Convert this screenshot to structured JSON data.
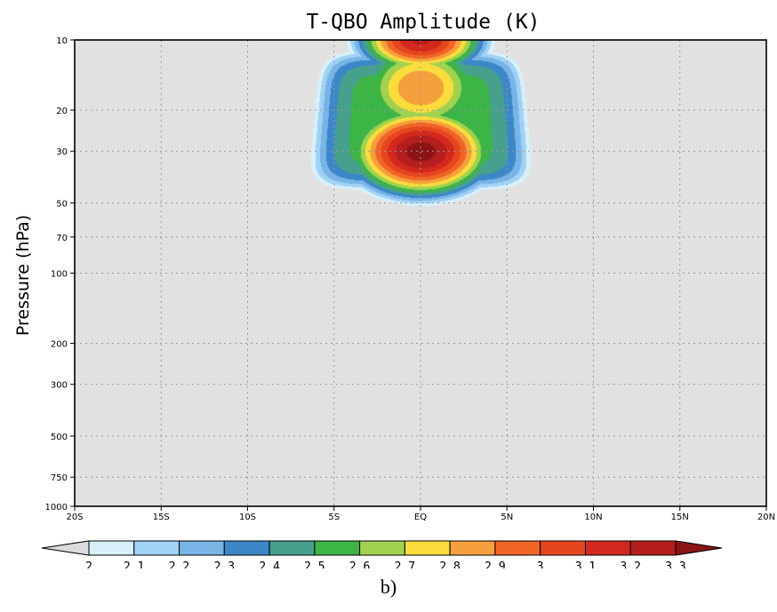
{
  "chart_data": {
    "type": "heatmap",
    "title": "T-QBO Amplitude (K)",
    "xlabel": "",
    "ylabel": "Pressure (hPa)",
    "x_ticks": [
      "20S",
      "15S",
      "10S",
      "5S",
      "EQ",
      "5N",
      "10N",
      "15N",
      "20N"
    ],
    "x_values": [
      -20,
      -15,
      -10,
      -5,
      0,
      5,
      10,
      15,
      20
    ],
    "xlim": [
      -20,
      20
    ],
    "y_ticks": [
      "10",
      "20",
      "30",
      "50",
      "70",
      "100",
      "200",
      "300",
      "500",
      "750",
      "1000"
    ],
    "y_values": [
      10,
      20,
      30,
      50,
      70,
      100,
      200,
      300,
      500,
      750,
      1000
    ],
    "ylim": [
      1000,
      10
    ],
    "y_scale": "log",
    "grid": true,
    "background_color": "#e1e1e1",
    "contour_levels": [
      2,
      2.1,
      2.2,
      2.3,
      2.4,
      2.5,
      2.6,
      2.7,
      2.8,
      2.9,
      3,
      3.1,
      3.2,
      3.3
    ],
    "colorbar_labels": [
      "2",
      "2.1",
      "2.2",
      "2.3",
      "2.4",
      "2.5",
      "2.6",
      "2.7",
      "2.8",
      "2.9",
      "3",
      "3.1",
      "3.2",
      "3.3"
    ],
    "colors": [
      "#dcdcdc",
      "#d7f0fa",
      "#a0d2f5",
      "#78b4e6",
      "#3c87c8",
      "#46a08c",
      "#3cb446",
      "#a0d250",
      "#fadc3c",
      "#f5a03c",
      "#f06428",
      "#e6461e",
      "#d2281e",
      "#b41e1e",
      "#8c1414"
    ],
    "peaks": [
      {
        "lat": 0,
        "pressure": 30,
        "value": 3.35
      },
      {
        "lat": 0,
        "pressure": 10,
        "value": 3.22
      }
    ]
  },
  "caption": "b)"
}
